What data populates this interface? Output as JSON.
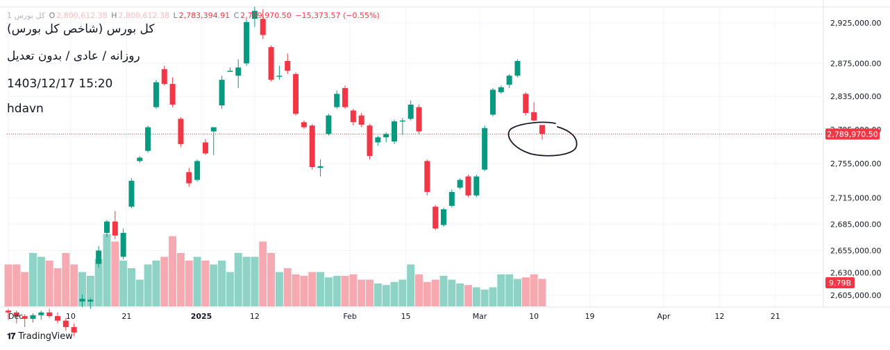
{
  "header": {
    "symbol_short": "1  کل بورس",
    "open_label": "O",
    "open": "2,800,612.38",
    "high_label": "H",
    "high": "2,800,612.38",
    "low_label": "L",
    "low": "2,783,394.91",
    "close_label": "C",
    "close": "2,789,970.50",
    "change": "−15,373.57 (−0.55%)"
  },
  "overlay_text": {
    "line1": "کل بورس (شاخص کل بورس)",
    "line2": "روزانه / عادی / بدون تعدیل",
    "line3": "1403/12/17 15:20",
    "line4": "hdavn"
  },
  "brand": {
    "name": "TradingView"
  },
  "colors": {
    "up": "#089981",
    "down": "#f23645",
    "vol_up": "#8fd3c6",
    "vol_down": "#f7a9b1"
  },
  "chart_data": {
    "type": "candlestick",
    "y_scale": "log",
    "y_ticks": [
      2925000,
      2875000,
      2835000,
      2795000,
      2755000,
      2715000,
      2685000,
      2655000,
      2630000,
      2605000
    ],
    "y_tick_labels": [
      "2,925,000.00",
      "2,875,000.00",
      "2,835,000.00",
      "2,795,000.00",
      "2,755,000.00",
      "2,715,000.00",
      "2,685,000.00",
      "2,655,000.00",
      "2,630,000.00",
      "2,605,000.00"
    ],
    "last_price": 2789970.5,
    "last_price_label": "2,789,970.50",
    "volume_label": "9.79B",
    "x_ticks": [
      {
        "i": 0,
        "label": "Dec"
      },
      {
        "i": 7.6,
        "label": "10"
      },
      {
        "i": 14.4,
        "label": "21"
      },
      {
        "i": 23.5,
        "label": "2025"
      },
      {
        "i": 30,
        "label": "12"
      },
      {
        "i": 41.6,
        "label": "Feb"
      },
      {
        "i": 48.4,
        "label": "15"
      },
      {
        "i": 57.4,
        "label": "Mar"
      },
      {
        "i": 64,
        "label": "10"
      },
      {
        "i": 70.8,
        "label": "19"
      },
      {
        "i": 79.8,
        "label": "Apr"
      },
      {
        "i": 86.6,
        "label": "12"
      },
      {
        "i": 93.4,
        "label": "21"
      }
    ],
    "candles": [
      {
        "o": 2588000,
        "h": 2590000,
        "l": 2578000,
        "c": 2586000,
        "v": 0.55
      },
      {
        "o": 2586000,
        "h": 2588000,
        "l": 2574000,
        "c": 2582000,
        "v": 0.55
      },
      {
        "o": 2582000,
        "h": 2584000,
        "l": 2570000,
        "c": 2579000,
        "v": 0.45
      },
      {
        "o": 2579000,
        "h": 2585000,
        "l": 2575000,
        "c": 2583000,
        "v": 0.7
      },
      {
        "o": 2583000,
        "h": 2588000,
        "l": 2578000,
        "c": 2586000,
        "v": 0.65
      },
      {
        "o": 2586000,
        "h": 2590000,
        "l": 2580000,
        "c": 2582000,
        "v": 0.6
      },
      {
        "o": 2582000,
        "h": 2586000,
        "l": 2574000,
        "c": 2577000,
        "v": 0.5
      },
      {
        "o": 2577000,
        "h": 2580000,
        "l": 2566000,
        "c": 2570000,
        "v": 0.7
      },
      {
        "o": 2570000,
        "h": 2574000,
        "l": 2560000,
        "c": 2564000,
        "v": 0.55
      },
      {
        "o": 2598000,
        "h": 2606000,
        "l": 2592000,
        "c": 2601000,
        "v": 0.45
      },
      {
        "o": 2598000,
        "h": 2602000,
        "l": 2590000,
        "c": 2600000,
        "v": 0.4
      },
      {
        "o": 2640000,
        "h": 2660000,
        "l": 2636000,
        "c": 2655000,
        "v": 0.62
      },
      {
        "o": 2675000,
        "h": 2690000,
        "l": 2670000,
        "c": 2688000,
        "v": 0.95
      },
      {
        "o": 2688000,
        "h": 2700000,
        "l": 2668000,
        "c": 2672000,
        "v": 0.85
      },
      {
        "o": 2648000,
        "h": 2680000,
        "l": 2645000,
        "c": 2675000,
        "v": 0.6
      },
      {
        "o": 2705000,
        "h": 2738000,
        "l": 2703000,
        "c": 2735000,
        "v": 0.5
      },
      {
        "o": 2758000,
        "h": 2764000,
        "l": 2756000,
        "c": 2762000,
        "v": 0.35
      },
      {
        "o": 2770000,
        "h": 2800000,
        "l": 2768000,
        "c": 2798000,
        "v": 0.55
      },
      {
        "o": 2822000,
        "h": 2855000,
        "l": 2820000,
        "c": 2852000,
        "v": 0.6
      },
      {
        "o": 2868000,
        "h": 2872000,
        "l": 2848000,
        "c": 2850000,
        "v": 0.65
      },
      {
        "o": 2850000,
        "h": 2858000,
        "l": 2822000,
        "c": 2825000,
        "v": 0.92
      },
      {
        "o": 2808000,
        "h": 2810000,
        "l": 2775000,
        "c": 2778000,
        "v": 0.7
      },
      {
        "o": 2745000,
        "h": 2750000,
        "l": 2728000,
        "c": 2732000,
        "v": 0.6
      },
      {
        "o": 2736000,
        "h": 2760000,
        "l": 2734000,
        "c": 2758000,
        "v": 0.65
      },
      {
        "o": 2780000,
        "h": 2784000,
        "l": 2765000,
        "c": 2767000,
        "v": 0.6
      },
      {
        "o": 2793000,
        "h": 2798000,
        "l": 2765000,
        "c": 2798000,
        "v": 0.55
      },
      {
        "o": 2824000,
        "h": 2860000,
        "l": 2820000,
        "c": 2855000,
        "v": 0.6
      },
      {
        "o": 2865000,
        "h": 2870000,
        "l": 2865000,
        "c": 2866000,
        "v": 0.45
      },
      {
        "o": 2860000,
        "h": 2880000,
        "l": 2845000,
        "c": 2870000,
        "v": 0.7
      },
      {
        "o": 2875000,
        "h": 2930000,
        "l": 2872000,
        "c": 2926000,
        "v": 0.65
      },
      {
        "o": 2930000,
        "h": 2945000,
        "l": 2920000,
        "c": 2940000,
        "v": 0.65
      },
      {
        "o": 2930000,
        "h": 2942000,
        "l": 2905000,
        "c": 2910000,
        "v": 0.85
      },
      {
        "o": 2895000,
        "h": 2897000,
        "l": 2853000,
        "c": 2855000,
        "v": 0.7
      },
      {
        "o": 2860000,
        "h": 2872000,
        "l": 2855000,
        "c": 2860000,
        "v": 0.45
      },
      {
        "o": 2878000,
        "h": 2887000,
        "l": 2862000,
        "c": 2866000,
        "v": 0.5
      },
      {
        "o": 2862000,
        "h": 2864000,
        "l": 2812000,
        "c": 2814000,
        "v": 0.42
      },
      {
        "o": 2804000,
        "h": 2806000,
        "l": 2796000,
        "c": 2798000,
        "v": 0.4
      },
      {
        "o": 2800000,
        "h": 2802000,
        "l": 2748000,
        "c": 2751000,
        "v": 0.45
      },
      {
        "o": 2750000,
        "h": 2760000,
        "l": 2740000,
        "c": 2752000,
        "v": 0.45
      },
      {
        "o": 2790000,
        "h": 2814000,
        "l": 2788000,
        "c": 2812000,
        "v": 0.38
      },
      {
        "o": 2822000,
        "h": 2842000,
        "l": 2820000,
        "c": 2838000,
        "v": 0.4
      },
      {
        "o": 2845000,
        "h": 2848000,
        "l": 2820000,
        "c": 2822000,
        "v": 0.4
      },
      {
        "o": 2818000,
        "h": 2820000,
        "l": 2800000,
        "c": 2804000,
        "v": 0.42
      },
      {
        "o": 2812000,
        "h": 2815000,
        "l": 2798000,
        "c": 2801000,
        "v": 0.35
      },
      {
        "o": 2800000,
        "h": 2802000,
        "l": 2760000,
        "c": 2764000,
        "v": 0.35
      },
      {
        "o": 2780000,
        "h": 2788000,
        "l": 2776000,
        "c": 2786000,
        "v": 0.3
      },
      {
        "o": 2786000,
        "h": 2792000,
        "l": 2780000,
        "c": 2790000,
        "v": 0.28
      },
      {
        "o": 2781000,
        "h": 2807000,
        "l": 2778000,
        "c": 2805000,
        "v": 0.32
      },
      {
        "o": 2805000,
        "h": 2809000,
        "l": 2789000,
        "c": 2806000,
        "v": 0.35
      },
      {
        "o": 2808000,
        "h": 2830000,
        "l": 2806000,
        "c": 2825000,
        "v": 0.55
      },
      {
        "o": 2822000,
        "h": 2825000,
        "l": 2790000,
        "c": 2793000,
        "v": 0.42
      },
      {
        "o": 2758000,
        "h": 2760000,
        "l": 2718000,
        "c": 2722000,
        "v": 0.32
      },
      {
        "o": 2705000,
        "h": 2707000,
        "l": 2678000,
        "c": 2680000,
        "v": 0.35
      },
      {
        "o": 2684000,
        "h": 2704000,
        "l": 2682000,
        "c": 2702000,
        "v": 0.4
      },
      {
        "o": 2706000,
        "h": 2725000,
        "l": 2704000,
        "c": 2722000,
        "v": 0.35
      },
      {
        "o": 2727000,
        "h": 2738000,
        "l": 2725000,
        "c": 2736000,
        "v": 0.3
      },
      {
        "o": 2740000,
        "h": 2742000,
        "l": 2716000,
        "c": 2718000,
        "v": 0.28
      },
      {
        "o": 2718000,
        "h": 2742000,
        "l": 2716000,
        "c": 2740000,
        "v": 0.25
      },
      {
        "o": 2748000,
        "h": 2800000,
        "l": 2746000,
        "c": 2797000,
        "v": 0.22
      },
      {
        "o": 2813000,
        "h": 2845000,
        "l": 2811000,
        "c": 2843000,
        "v": 0.25
      },
      {
        "o": 2840000,
        "h": 2848000,
        "l": 2838000,
        "c": 2846000,
        "v": 0.42
      },
      {
        "o": 2849000,
        "h": 2862000,
        "l": 2845000,
        "c": 2860000,
        "v": 0.42
      },
      {
        "o": 2860000,
        "h": 2880000,
        "l": 2858000,
        "c": 2878000,
        "v": 0.36
      },
      {
        "o": 2838000,
        "h": 2840000,
        "l": 2812000,
        "c": 2815000,
        "v": 0.38
      },
      {
        "o": 2816000,
        "h": 2828000,
        "l": 2805000,
        "c": 2806000,
        "v": 0.42
      },
      {
        "o": 2800612,
        "h": 2800612,
        "l": 2783395,
        "c": 2789970,
        "v": 0.36
      }
    ]
  }
}
